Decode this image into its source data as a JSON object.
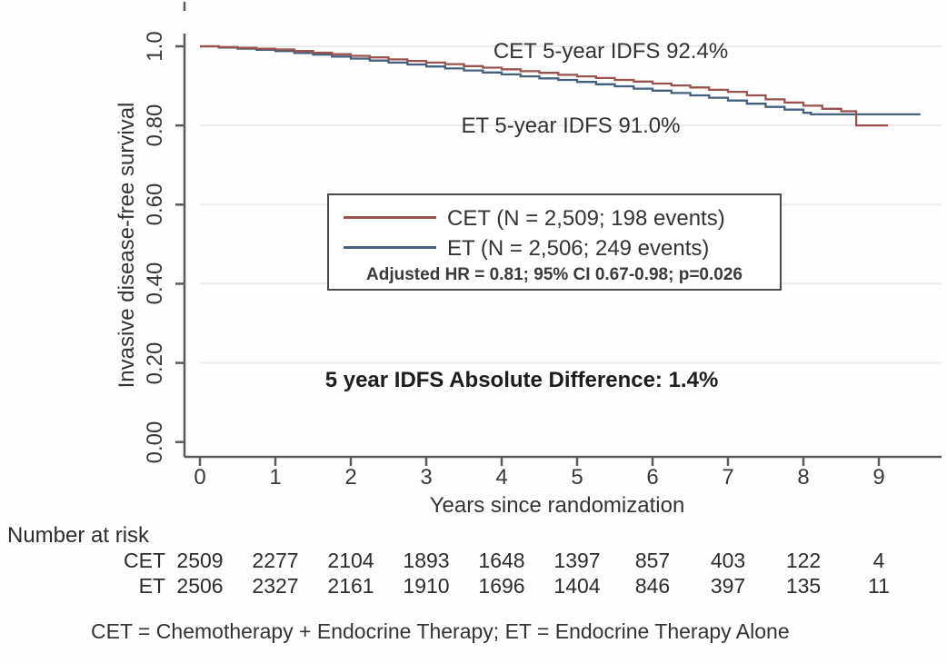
{
  "colors": {
    "cet_line": "#99524d",
    "et_line": "#44607d",
    "axis": "#5a5a5a",
    "grid": "#ececec",
    "legend_border": "#4a4a4a",
    "text": "#303030"
  },
  "chart_data": {
    "type": "line",
    "subtype": "kaplan-meier-step",
    "title": "",
    "xlabel": "Years since randomization",
    "ylabel": "Invasive disease-free survival",
    "xlim": [
      0,
      9.8
    ],
    "ylim": [
      0.0,
      1.0
    ],
    "grid": "horizontal",
    "legend_position": "center",
    "x_tick_labels": [
      "0",
      "1",
      "2",
      "3",
      "4",
      "5",
      "6",
      "7",
      "8",
      "9"
    ],
    "y_tick_labels": [
      "1.0",
      "0.80",
      "0.60",
      "0.40",
      "0.20",
      "0.00"
    ],
    "y_tick_values": [
      1.0,
      0.8,
      0.6,
      0.4,
      0.2,
      0.0
    ],
    "series": [
      {
        "name": "CET",
        "label": "CET (N = 2,509; 198 events)",
        "n": 2509,
        "events": 198,
        "five_year_idfs": "92.4%",
        "color_key": "cet_line",
        "points": [
          [
            0,
            1.0
          ],
          [
            0.25,
            0.998
          ],
          [
            0.5,
            0.996
          ],
          [
            0.75,
            0.994
          ],
          [
            1,
            0.992
          ],
          [
            1.25,
            0.988
          ],
          [
            1.5,
            0.984
          ],
          [
            1.75,
            0.98
          ],
          [
            2,
            0.976
          ],
          [
            2.25,
            0.972
          ],
          [
            2.5,
            0.967
          ],
          [
            2.75,
            0.963
          ],
          [
            3,
            0.959
          ],
          [
            3.25,
            0.955
          ],
          [
            3.5,
            0.95
          ],
          [
            3.75,
            0.946
          ],
          [
            4,
            0.942
          ],
          [
            4.25,
            0.937
          ],
          [
            4.5,
            0.933
          ],
          [
            4.75,
            0.928
          ],
          [
            5,
            0.924
          ],
          [
            5.25,
            0.92
          ],
          [
            5.5,
            0.915
          ],
          [
            5.75,
            0.911
          ],
          [
            6,
            0.906
          ],
          [
            6.25,
            0.901
          ],
          [
            6.5,
            0.896
          ],
          [
            6.75,
            0.89
          ],
          [
            7,
            0.885
          ],
          [
            7.25,
            0.876
          ],
          [
            7.5,
            0.866
          ],
          [
            7.75,
            0.858
          ],
          [
            8,
            0.85
          ],
          [
            8.25,
            0.842
          ],
          [
            8.5,
            0.836
          ],
          [
            8.7,
            0.8
          ],
          [
            9.12,
            0.8
          ]
        ]
      },
      {
        "name": "ET",
        "label": "ET (N = 2,506; 249 events)",
        "n": 2506,
        "events": 249,
        "five_year_idfs": "91.0%",
        "color_key": "et_line",
        "points": [
          [
            0,
            1.0
          ],
          [
            0.25,
            0.997
          ],
          [
            0.5,
            0.994
          ],
          [
            0.75,
            0.991
          ],
          [
            1,
            0.988
          ],
          [
            1.25,
            0.983
          ],
          [
            1.5,
            0.979
          ],
          [
            1.75,
            0.974
          ],
          [
            2,
            0.969
          ],
          [
            2.25,
            0.964
          ],
          [
            2.5,
            0.959
          ],
          [
            2.75,
            0.954
          ],
          [
            3,
            0.949
          ],
          [
            3.25,
            0.944
          ],
          [
            3.5,
            0.939
          ],
          [
            3.75,
            0.934
          ],
          [
            4,
            0.929
          ],
          [
            4.25,
            0.924
          ],
          [
            4.5,
            0.919
          ],
          [
            4.75,
            0.915
          ],
          [
            5,
            0.91
          ],
          [
            5.25,
            0.904
          ],
          [
            5.5,
            0.899
          ],
          [
            5.75,
            0.893
          ],
          [
            6,
            0.888
          ],
          [
            6.25,
            0.882
          ],
          [
            6.5,
            0.876
          ],
          [
            6.75,
            0.87
          ],
          [
            7,
            0.863
          ],
          [
            7.25,
            0.855
          ],
          [
            7.5,
            0.847
          ],
          [
            7.75,
            0.84
          ],
          [
            8,
            0.832
          ],
          [
            8.1,
            0.828
          ],
          [
            9.55,
            0.828
          ]
        ]
      }
    ],
    "annotations": [
      {
        "text": "CET 5-year IDFS 92.4%"
      },
      {
        "text": "ET 5-year IDFS 91.0%"
      }
    ],
    "stats_line": "Adjusted HR = 0.81; 95% CI 0.67-0.98; p=0.026",
    "stats": {
      "adjusted_hr": "0.81",
      "ci_95": "0.67-0.98",
      "p_value": "0.026"
    },
    "difference_note": "5 year IDFS Absolute Difference: 1.4%"
  },
  "risk_table": {
    "heading": "Number at risk",
    "rows": [
      {
        "label": "CET",
        "values": [
          "2509",
          "2277",
          "2104",
          "1893",
          "1648",
          "1397",
          "857",
          "403",
          "122",
          "4"
        ]
      },
      {
        "label": "ET",
        "values": [
          "2506",
          "2327",
          "2161",
          "1910",
          "1696",
          "1404",
          "846",
          "397",
          "135",
          "11"
        ]
      }
    ]
  },
  "footnote": "CET = Chemotherapy + Endocrine Therapy; ET = Endocrine Therapy Alone"
}
